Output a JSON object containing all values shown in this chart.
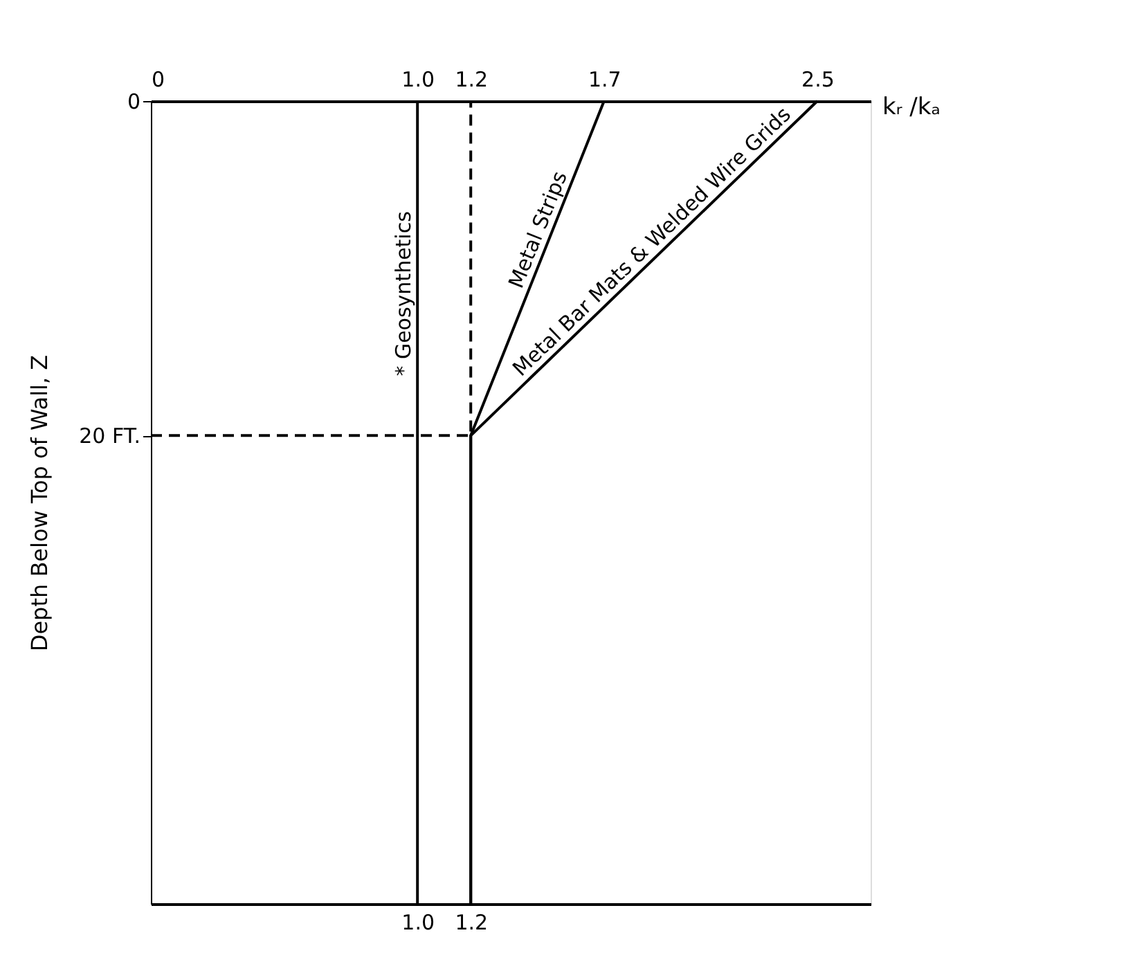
{
  "chart_data": {
    "type": "line",
    "x2label": "kᵣ /kₐ",
    "ylabel": "Depth Below Top of Wall, Z",
    "xlim": [
      0,
      2.7
    ],
    "xticks": [
      {
        "value": 1,
        "label": "1.0"
      },
      1.2
    ],
    "x2lim": [
      0,
      2.7
    ],
    "x2ticks": [
      0,
      {
        "value": 1,
        "label": "1.0"
      },
      1.2,
      1.7,
      2.5
    ],
    "ylim": [
      48,
      0
    ],
    "yticks": [
      0,
      {
        "value": 20,
        "label": "20 FT."
      }
    ],
    "grid": false,
    "ref_lines": [
      {
        "axis": "x",
        "value": 1,
        "label": "* Geosynthetics",
        "color": "#000000"
      }
    ],
    "series": [
      {
        "name": "Metal Strips",
        "color": "#000000",
        "x": [
          1.7,
          1.2,
          1.2
        ],
        "values": [
          0,
          20,
          48
        ]
      },
      {
        "name": "Metal Bar Mats & Welded Wire Grids",
        "color": "#000000",
        "x": [
          2.5,
          1.2,
          1.2
        ],
        "values": [
          0,
          20,
          48
        ]
      },
      {
        "color": "#000000",
        "line_style": "dashed",
        "x": [
          0,
          1.2,
          1.2
        ],
        "values": [
          20,
          20,
          0
        ]
      }
    ]
  }
}
